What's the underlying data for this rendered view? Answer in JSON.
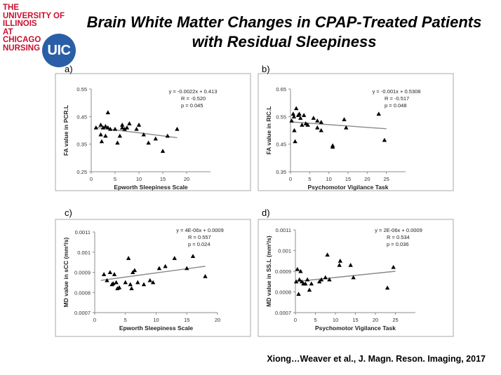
{
  "logo": {
    "lines": [
      "THE",
      "UNIVERSITY OF",
      "ILLINOIS",
      "AT",
      "CHICAGO",
      "NURSING"
    ],
    "badge": "UIC",
    "color": "#c8102e",
    "badge_color": "#2a5fa8"
  },
  "title": {
    "line1": "Brain White Matter Changes in CPAP-Treated Patients",
    "line2": "with Residual Sleepiness"
  },
  "citation": "Xiong…Weaver et al., J. Magn. Reson. Imaging, 2017",
  "chart_data": [
    {
      "panel": "a)",
      "type": "scatter",
      "xlabel": "Epworth Sleepiness Scale",
      "ylabel": "FA value in PCR.L",
      "xlim": [
        0,
        25
      ],
      "ylim": [
        0.25,
        0.55
      ],
      "xticks": [
        0,
        5,
        10,
        15,
        20
      ],
      "yticks": [
        0.25,
        0.35,
        0.45,
        0.55
      ],
      "ytick_labels": [
        "0.25",
        "0.35",
        "0.45",
        "0.55"
      ],
      "equation": "y = -0.0022x + 0.413",
      "r": "R = -0.520",
      "p": "p = 0.045",
      "trend": {
        "slope": -0.0022,
        "intercept": 0.413,
        "x_range": [
          1,
          18
        ]
      },
      "points": [
        [
          1,
          0.41
        ],
        [
          2,
          0.42
        ],
        [
          2,
          0.385
        ],
        [
          2.2,
          0.36
        ],
        [
          2.5,
          0.41
        ],
        [
          3,
          0.38
        ],
        [
          3,
          0.415
        ],
        [
          3.5,
          0.41
        ],
        [
          3.5,
          0.465
        ],
        [
          4,
          0.405
        ],
        [
          5,
          0.405
        ],
        [
          5.5,
          0.355
        ],
        [
          6,
          0.38
        ],
        [
          6.5,
          0.41
        ],
        [
          6.5,
          0.42
        ],
        [
          7,
          0.405
        ],
        [
          7.5,
          0.41
        ],
        [
          8,
          0.425
        ],
        [
          9.5,
          0.405
        ],
        [
          10,
          0.42
        ],
        [
          11,
          0.385
        ],
        [
          12,
          0.355
        ],
        [
          13.5,
          0.37
        ],
        [
          15,
          0.325
        ],
        [
          16,
          0.38
        ],
        [
          18,
          0.405
        ]
      ]
    },
    {
      "panel": "b)",
      "type": "scatter",
      "xlabel": "Psychomotor Vigilance Task",
      "ylabel": "FA value in RIC.L",
      "xlim": [
        0,
        30
      ],
      "ylim": [
        0.35,
        0.65
      ],
      "xticks": [
        0,
        5,
        10,
        15,
        20,
        25
      ],
      "yticks": [
        0.35,
        0.45,
        0.55,
        0.65
      ],
      "ytick_labels": [
        "0.35",
        "0.45",
        "0.55",
        "0.65"
      ],
      "equation": "y = -0.001x + 0.5308",
      "r": "R = -0.517",
      "p": "p = 0.048",
      "trend": {
        "slope": -0.001,
        "intercept": 0.5308,
        "x_range": [
          0,
          25
        ]
      },
      "points": [
        [
          0.3,
          0.535
        ],
        [
          0.7,
          0.56
        ],
        [
          0.9,
          0.55
        ],
        [
          1,
          0.5
        ],
        [
          1.2,
          0.46
        ],
        [
          1.5,
          0.58
        ],
        [
          2,
          0.555
        ],
        [
          2.3,
          0.56
        ],
        [
          2.6,
          0.545
        ],
        [
          3,
          0.52
        ],
        [
          3.5,
          0.555
        ],
        [
          4,
          0.525
        ],
        [
          4.5,
          0.52
        ],
        [
          6,
          0.545
        ],
        [
          7,
          0.535
        ],
        [
          7,
          0.51
        ],
        [
          8,
          0.53
        ],
        [
          8,
          0.5
        ],
        [
          11,
          0.445
        ],
        [
          11,
          0.44
        ],
        [
          14,
          0.54
        ],
        [
          14.5,
          0.51
        ],
        [
          23,
          0.56
        ],
        [
          24.5,
          0.465
        ]
      ]
    },
    {
      "panel": "c)",
      "type": "scatter",
      "xlabel": "Epworth Sleepiness Scale",
      "ylabel": "MD value in sCC (mm²/s)",
      "xlim": [
        0,
        20
      ],
      "ylim": [
        0.0007,
        0.0011
      ],
      "xticks": [
        0,
        5,
        10,
        15,
        20
      ],
      "yticks": [
        0.0007,
        0.0008,
        0.0009,
        0.001,
        0.0011
      ],
      "ytick_labels": [
        "0.0007",
        "0.0008",
        "0.0009",
        "0.001",
        "0.0011"
      ],
      "equation": "y = 4E-06x + 0.0009",
      "r": "R = 0.557",
      "p": "p = 0.024",
      "trend": {
        "x_range": [
          1,
          18
        ],
        "y_range": [
          0.00086,
          0.00093
        ]
      },
      "points": [
        [
          1.5,
          0.00089
        ],
        [
          2,
          0.00086
        ],
        [
          2.5,
          0.0009
        ],
        [
          2.8,
          0.00084
        ],
        [
          3,
          0.000845
        ],
        [
          3.2,
          0.00089
        ],
        [
          3.5,
          0.00085
        ],
        [
          3.7,
          0.00082
        ],
        [
          4,
          0.000825
        ],
        [
          5,
          0.00085
        ],
        [
          5.5,
          0.00097
        ],
        [
          5.8,
          0.00084
        ],
        [
          6,
          0.00082
        ],
        [
          6.2,
          0.0009
        ],
        [
          6.5,
          0.00091
        ],
        [
          7,
          0.00085
        ],
        [
          8,
          0.00084
        ],
        [
          9,
          0.00086
        ],
        [
          9.5,
          0.00085
        ],
        [
          10.5,
          0.00092
        ],
        [
          11.5,
          0.00093
        ],
        [
          13,
          0.00097
        ],
        [
          15,
          0.00092
        ],
        [
          16,
          0.00098
        ],
        [
          18,
          0.00088
        ]
      ]
    },
    {
      "panel": "d)",
      "type": "scatter",
      "xlabel": "Psychomotor Vigilance Task",
      "ylabel": "MD value in SS.L (mm²/s)",
      "xlim": [
        0,
        30
      ],
      "ylim": [
        0.0007,
        0.0011
      ],
      "xticks": [
        0,
        5,
        10,
        15,
        20,
        25
      ],
      "yticks": [
        0.0007,
        0.0008,
        0.0009,
        0.001,
        0.0011
      ],
      "ytick_labels": [
        "0.0007",
        "0.0008",
        "0.0009",
        "0.001",
        "0.0011"
      ],
      "equation": "y = 2E-06x + 0.0009",
      "r": "R = 0.534",
      "p": "p = 0.036",
      "trend": {
        "x_range": [
          0,
          25
        ],
        "y_range": [
          0.00085,
          0.0009
        ]
      },
      "points": [
        [
          0.2,
          0.00085
        ],
        [
          0.5,
          0.00091
        ],
        [
          0.8,
          0.00079
        ],
        [
          1,
          0.00086
        ],
        [
          1.3,
          0.0009
        ],
        [
          1.6,
          0.00085
        ],
        [
          2,
          0.00084
        ],
        [
          2.5,
          0.00084
        ],
        [
          3,
          0.00086
        ],
        [
          3.5,
          0.00081
        ],
        [
          4,
          0.00084
        ],
        [
          6,
          0.00085
        ],
        [
          6.5,
          0.00086
        ],
        [
          7.5,
          0.00087
        ],
        [
          8,
          0.00098
        ],
        [
          8.5,
          0.00086
        ],
        [
          11,
          0.00093
        ],
        [
          11.2,
          0.00095
        ],
        [
          13.8,
          0.00093
        ],
        [
          14.5,
          0.00087
        ],
        [
          23,
          0.00082
        ],
        [
          24.5,
          0.00092
        ]
      ]
    }
  ]
}
